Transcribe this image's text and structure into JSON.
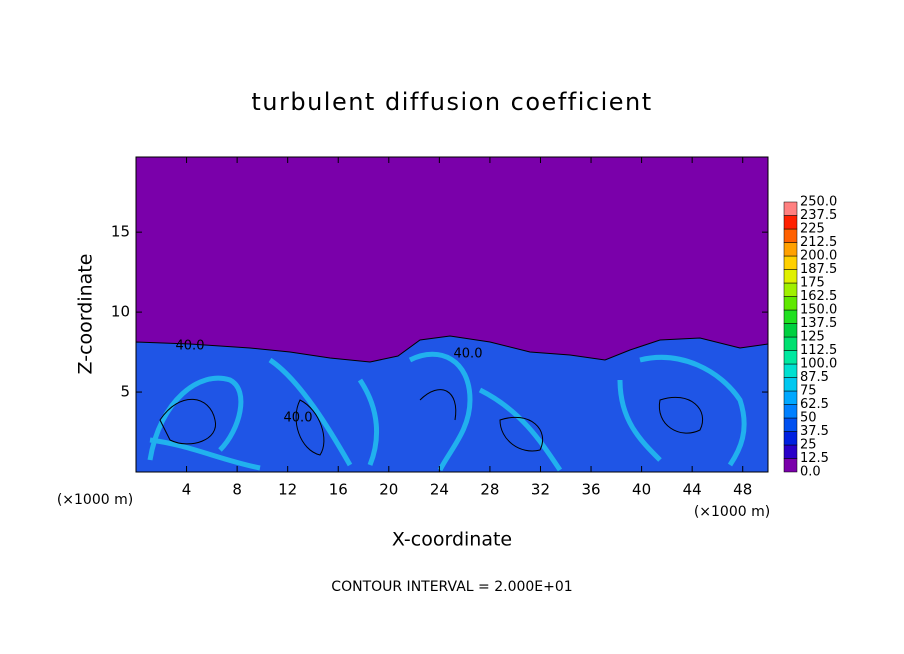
{
  "chart_data": {
    "type": "contour",
    "title": "turbulent diffusion coefficient",
    "x_label": "X-coordinate",
    "y_label": "Z-coordinate",
    "y_unit_label": "(×1000 m)",
    "x_unit_label": "(×1000 m)",
    "note": "CONTOUR INTERVAL = 2.000E+01",
    "xlim": [
      0,
      50
    ],
    "ylim": [
      0,
      19.7
    ],
    "xticks": [
      4,
      8,
      12,
      16,
      20,
      24,
      28,
      32,
      36,
      40,
      44,
      48
    ],
    "yticks": [
      5,
      10,
      15
    ],
    "contour_labels": [
      "40.0",
      "40.0",
      "40.0"
    ],
    "background_color": "#7a00aa",
    "colorbar": {
      "levels": [
        {
          "value": 0,
          "label": "0.0"
        },
        12.5,
        25,
        37.5,
        50,
        62.5,
        75,
        87.5,
        {
          "value": 100,
          "label": "100.0"
        },
        112.5,
        125,
        137.5,
        {
          "value": 150,
          "label": "150.0"
        },
        162.5,
        175,
        187.5,
        {
          "value": 200,
          "label": "200.0"
        },
        212.5,
        225,
        237.5,
        {
          "value": 250,
          "label": "250.0"
        }
      ],
      "colors": [
        "#7a00aa",
        "#2a00c8",
        "#0020e0",
        "#0050f0",
        "#0080ff",
        "#00a8ff",
        "#00c8f0",
        "#00e0d0",
        "#00e8a0",
        "#00e070",
        "#00d040",
        "#20e020",
        "#60e800",
        "#a0f000",
        "#e0f000",
        "#ffd000",
        "#ffa000",
        "#ff6000",
        "#ff2000",
        "#ff8080"
      ]
    }
  }
}
